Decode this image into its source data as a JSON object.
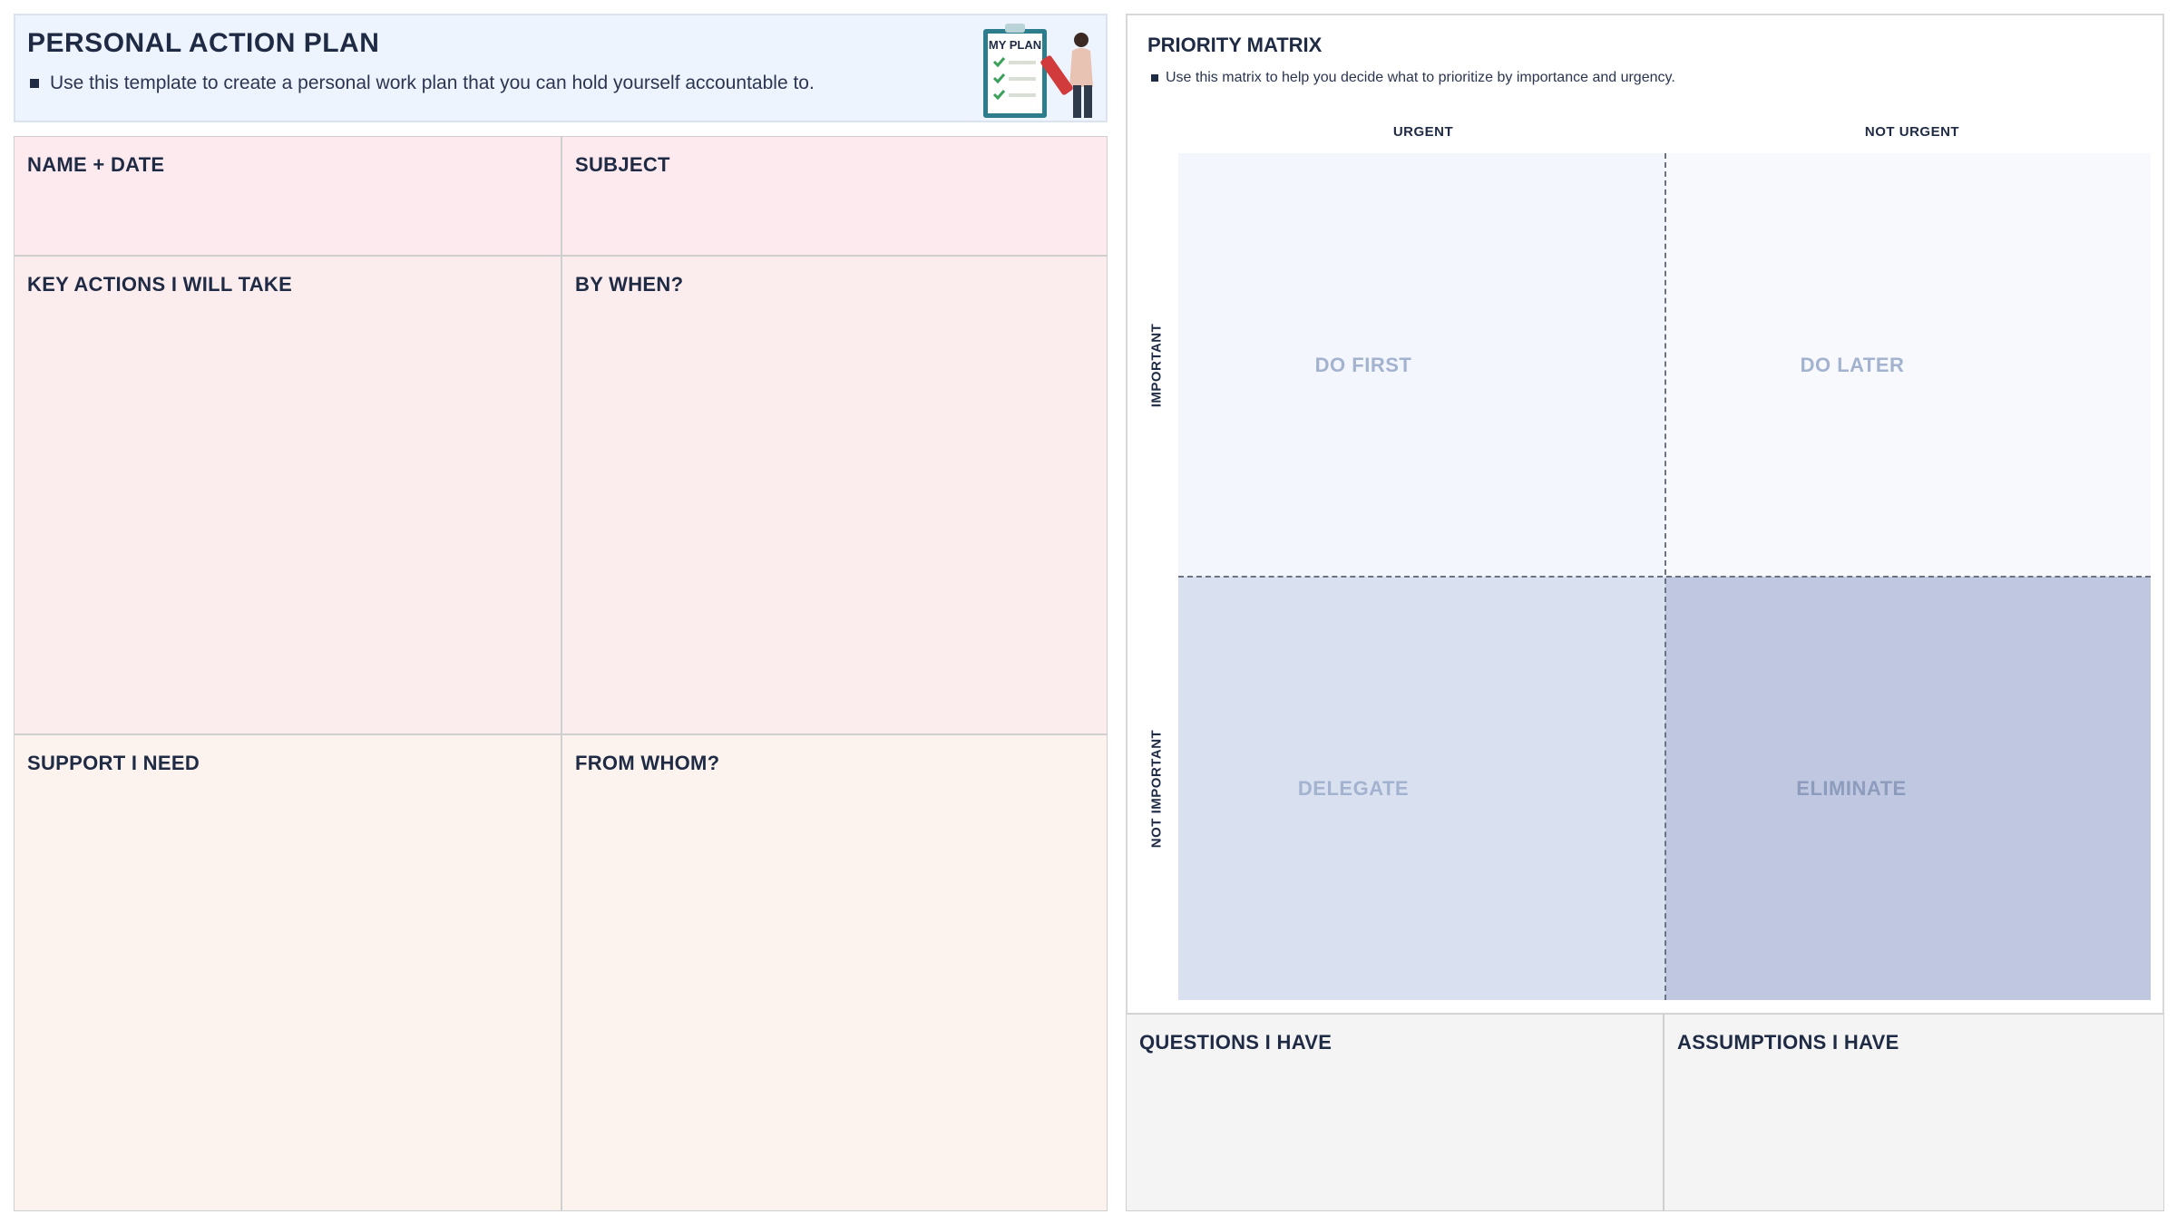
{
  "header": {
    "title": "PERSONAL ACTION PLAN",
    "description": "Use this template to create a personal work plan that you can hold yourself accountable to.",
    "illustration": {
      "icon": "clipboard-plan-illustration",
      "clipboard_text": "MY PLAN"
    }
  },
  "plan": {
    "name_date": "NAME + DATE",
    "subject": "SUBJECT",
    "key_actions": "KEY ACTIONS I WILL TAKE",
    "by_when": "BY WHEN?",
    "support": "SUPPORT I NEED",
    "from_whom": "FROM WHOM?"
  },
  "matrix": {
    "title": "PRIORITY MATRIX",
    "description": "Use this matrix to help you decide what to prioritize by importance and urgency.",
    "col_urgent": "URGENT",
    "col_not_urgent": "NOT URGENT",
    "row_important": "IMPORTANT",
    "row_not_important": "NOT IMPORTANT",
    "do_first": "DO FIRST",
    "do_later": "DO LATER",
    "delegate": "DELEGATE",
    "eliminate": "ELIMINATE"
  },
  "bottom": {
    "questions": "QUESTIONS I HAVE",
    "assumptions": "ASSUMPTIONS I HAVE"
  },
  "colors": {
    "text": "#1f2a44",
    "quadrant_label": "#a3b2cf",
    "quadrant_label_dark": "#8d9cbd"
  }
}
